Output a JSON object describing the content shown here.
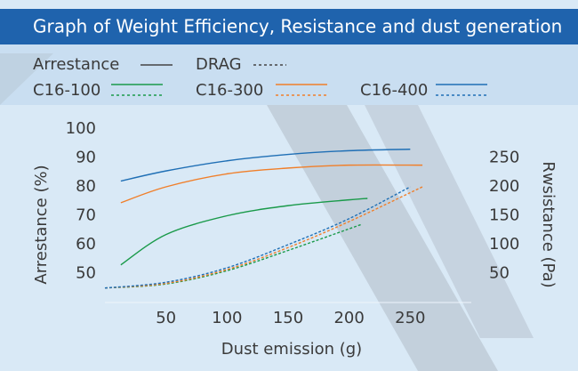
{
  "chart_data": {
    "type": "line",
    "title": "Graph of Weight Efficiency, Resistance and dust generation",
    "measures": [
      "Arrestance",
      "DRAG"
    ],
    "xlabel": "Dust emission (g)",
    "ylabel": "Arrestance (%)",
    "y2label": "Rwsistance (Pa)",
    "xlim": [
      0,
      300
    ],
    "xticks": [
      50,
      100,
      150,
      200,
      250
    ],
    "ylim": [
      40,
      100
    ],
    "yticks": [
      50,
      60,
      70,
      80,
      90,
      100
    ],
    "y2lim": [
      0,
      300
    ],
    "y2ticks": [
      50,
      100,
      150,
      200,
      250
    ],
    "series": [
      {
        "name": "C16-100",
        "color": "#1a9a4a",
        "x": [
          13,
          50,
          100,
          150,
          200,
          215
        ],
        "values": [
          53,
          63.5,
          70,
          73.5,
          75.5,
          76
        ],
        "drag": {
          "axis": "y2",
          "x": [
            0,
            50,
            100,
            150,
            210
          ],
          "values": [
            25,
            32,
            55,
            90,
            135
          ]
        }
      },
      {
        "name": "C16-300",
        "color": "#f07f2a",
        "x": [
          13,
          50,
          100,
          150,
          200,
          260
        ],
        "values": [
          74.5,
          80,
          84.5,
          86.5,
          87.5,
          87.5
        ],
        "drag": {
          "axis": "y2",
          "x": [
            0,
            50,
            100,
            150,
            200,
            260
          ],
          "values": [
            25,
            33,
            57,
            95,
            140,
            200
          ]
        }
      },
      {
        "name": "C16-400",
        "color": "#1f6fb5",
        "x": [
          13,
          50,
          100,
          150,
          200,
          250
        ],
        "values": [
          82,
          85.5,
          89,
          91.2,
          92.5,
          93
        ],
        "drag": {
          "axis": "y2",
          "x": [
            0,
            50,
            100,
            150,
            200,
            250
          ],
          "values": [
            25,
            35,
            60,
            100,
            145,
            200
          ]
        }
      }
    ]
  }
}
